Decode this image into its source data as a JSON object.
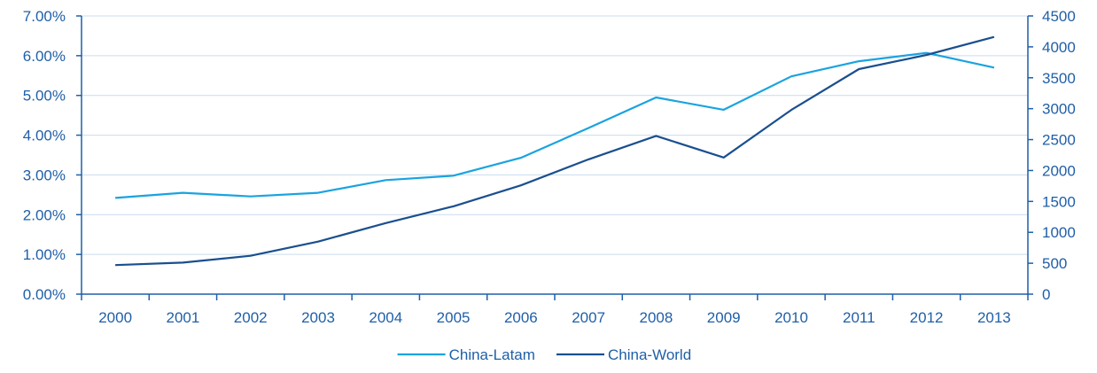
{
  "chart_data": {
    "type": "line",
    "x": [
      "2000",
      "2001",
      "2002",
      "2003",
      "2004",
      "2005",
      "2006",
      "2007",
      "2008",
      "2009",
      "2010",
      "2011",
      "2012",
      "2013"
    ],
    "y_left": {
      "ylim": [
        0,
        7
      ],
      "ticks": [
        0,
        1,
        2,
        3,
        4,
        5,
        6,
        7
      ],
      "tick_labels": [
        "0.00%",
        "1.00%",
        "2.00%",
        "3.00%",
        "4.00%",
        "5.00%",
        "6.00%",
        "7.00%"
      ]
    },
    "y_right": {
      "ylim": [
        0,
        4500
      ],
      "ticks": [
        0,
        500,
        1000,
        1500,
        2000,
        2500,
        3000,
        3500,
        4000,
        4500
      ],
      "tick_labels": [
        "0",
        "500",
        "1000",
        "1500",
        "2000",
        "2500",
        "3000",
        "3500",
        "4000",
        "4500"
      ]
    },
    "series": [
      {
        "name": "China-Latam",
        "axis": "left",
        "color": "#1aa3e0",
        "values": [
          2.42,
          2.55,
          2.46,
          2.55,
          2.87,
          2.98,
          3.43,
          4.18,
          4.95,
          4.64,
          5.48,
          5.86,
          6.07,
          5.7
        ]
      },
      {
        "name": "China-World",
        "axis": "right",
        "color": "#1a4f8f",
        "values": [
          470,
          510,
          620,
          850,
          1150,
          1420,
          1760,
          2180,
          2560,
          2210,
          2980,
          3640,
          3870,
          4160
        ]
      }
    ],
    "grid": true,
    "legend": "bottom-center"
  }
}
